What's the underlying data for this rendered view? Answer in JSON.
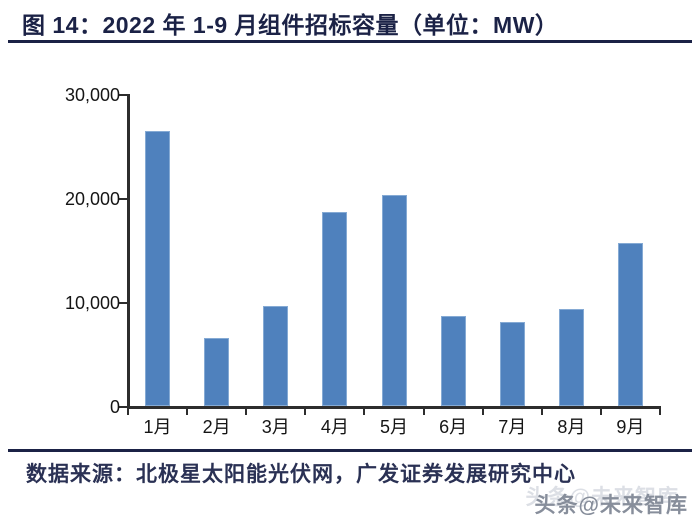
{
  "header": {
    "title": "图 14：2022 年 1-9 月组件招标容量（单位：MW）"
  },
  "footer": {
    "source": "数据来源：北极星太阳能光伏网，广发证券发展研究中心",
    "watermark": "头条@未来智库"
  },
  "colors": {
    "navy": "#1b2246",
    "bar": "#4f81bd",
    "axis": "#2d2d2d",
    "watermark": "#878e9b"
  },
  "chart_data": {
    "type": "bar",
    "title": "2022 年 1-9 月组件招标容量",
    "unit": "MW",
    "categories": [
      "1月",
      "2月",
      "3月",
      "4月",
      "5月",
      "6月",
      "7月",
      "8月",
      "9月"
    ],
    "values": [
      26500,
      6600,
      9700,
      18700,
      20400,
      8700,
      8100,
      9400,
      15700
    ],
    "xlabel": "",
    "ylabel": "",
    "ylim": [
      0,
      30000
    ],
    "yticks": [
      0,
      10000,
      20000,
      30000
    ],
    "ytick_labels": [
      "0",
      "10,000",
      "20,000",
      "30,000"
    ],
    "grid": false,
    "legend": "none",
    "bar_color": "#4f81bd"
  }
}
